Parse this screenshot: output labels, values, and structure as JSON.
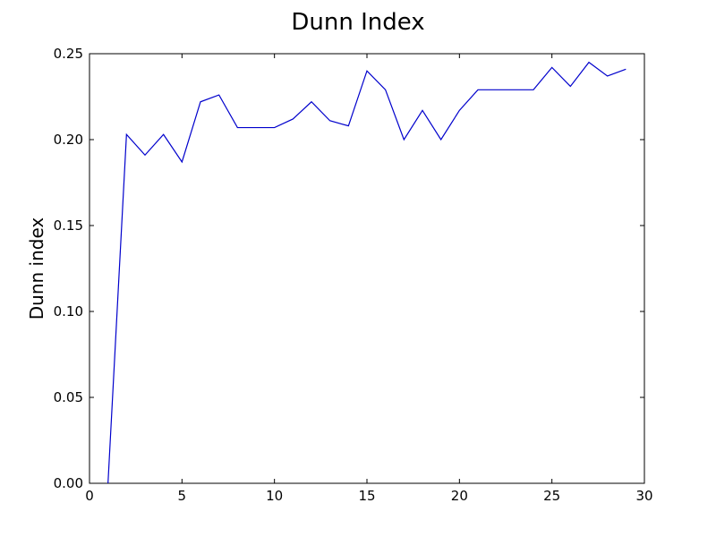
{
  "chart_data": {
    "type": "line",
    "title": "Dunn Index",
    "xlabel": "",
    "ylabel": "Dunn index",
    "xlim": [
      0,
      30
    ],
    "ylim": [
      0,
      0.25
    ],
    "xticks": [
      0,
      5,
      10,
      15,
      20,
      25,
      30
    ],
    "yticks": [
      0.0,
      0.05,
      0.1,
      0.15,
      0.2,
      0.25
    ],
    "xtick_labels": [
      "0",
      "5",
      "10",
      "15",
      "20",
      "25",
      "30"
    ],
    "ytick_labels": [
      "0.00",
      "0.05",
      "0.10",
      "0.15",
      "0.20",
      "0.25"
    ],
    "grid": false,
    "line_color": "#0000cc",
    "series": [
      {
        "x": [
          1,
          2,
          3,
          4,
          5,
          6,
          7,
          8,
          9,
          10,
          11,
          12,
          13,
          14,
          15,
          16,
          17,
          18,
          19,
          20,
          21,
          22,
          23,
          24,
          25,
          26,
          27,
          28,
          29
        ],
        "values": [
          0.0,
          0.203,
          0.191,
          0.203,
          0.187,
          0.222,
          0.226,
          0.207,
          0.207,
          0.207,
          0.212,
          0.222,
          0.211,
          0.208,
          0.24,
          0.229,
          0.2,
          0.217,
          0.2,
          0.217,
          0.229,
          0.229,
          0.229,
          0.229,
          0.242,
          0.231,
          0.245,
          0.237,
          0.241
        ]
      }
    ]
  }
}
